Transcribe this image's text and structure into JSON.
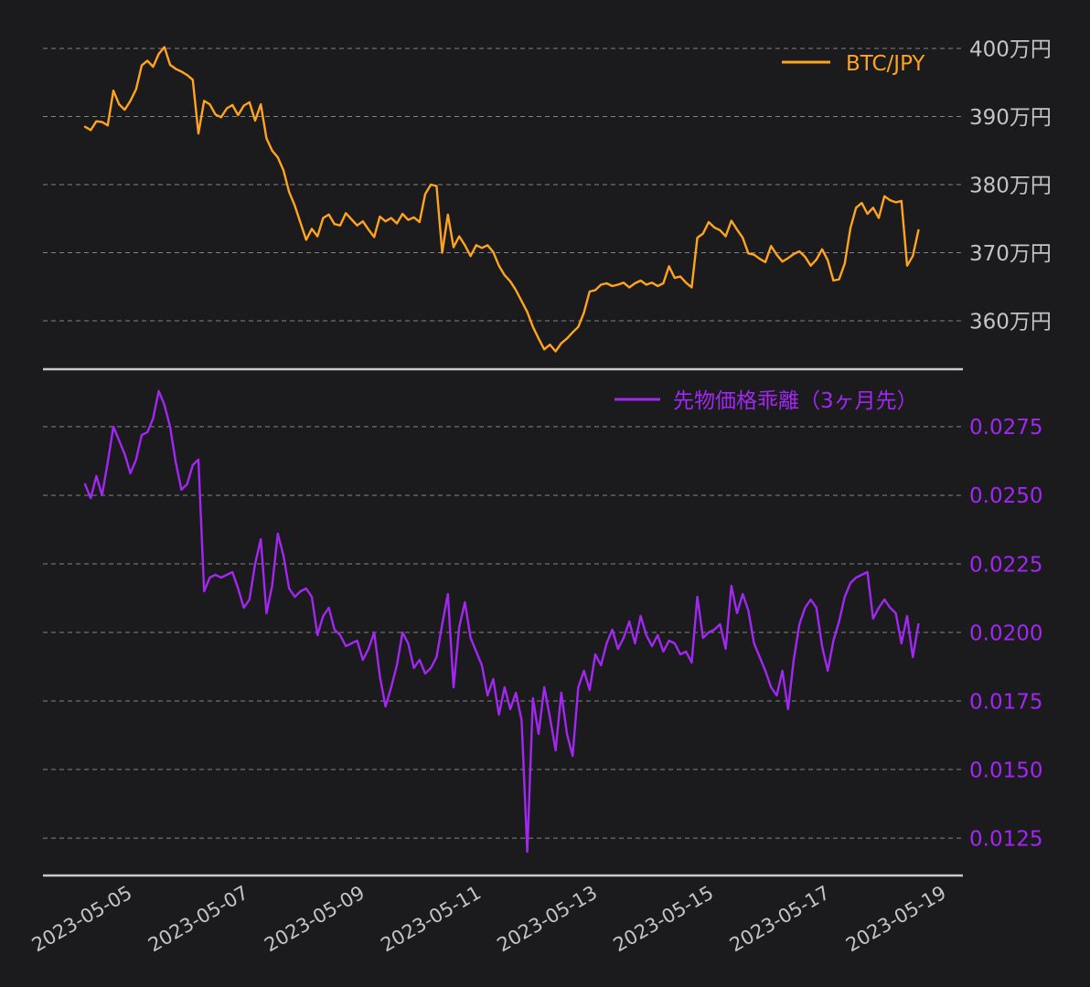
{
  "chart_data": {
    "type": "line",
    "title": "",
    "background_color": "#1b1b1d",
    "grid": true,
    "grid_color": "#96969a",
    "grid_dash": [
      5,
      4
    ],
    "axis_line_color": "#cacacc",
    "x_axis": {
      "tick_labels": [
        "2023-05-05",
        "2023-05-07",
        "2023-05-09",
        "2023-05-11",
        "2023-05-13",
        "2023-05-15",
        "2023-05-17",
        "2023-05-19"
      ],
      "tick_days": [
        5,
        7,
        9,
        11,
        13,
        15,
        17,
        19
      ],
      "xlim_days": [
        3.412,
        19.232
      ],
      "label_rotation_deg": 30,
      "label_color": "#c4c4c6"
    },
    "panels": [
      {
        "id": "btc-jpy",
        "legend_label": "BTC/JPY",
        "line_color": "#ffa41e",
        "tick_label_color": "#c4c4c6",
        "unit": "万円",
        "ylim": [
          353.02,
          403.09
        ],
        "yticks": [
          {
            "value": 400,
            "label": "400万円"
          },
          {
            "value": 390,
            "label": "390万円"
          },
          {
            "value": 380,
            "label": "380万円"
          },
          {
            "value": 370,
            "label": "370万円"
          },
          {
            "value": 360,
            "label": "360万円"
          }
        ],
        "series": {
          "x_start_day": 4.135,
          "x_step_day": 0.0975,
          "values": [
            388.5,
            388.0,
            389.3,
            389.2,
            388.7,
            393.8,
            391.8,
            391.0,
            392.3,
            394.0,
            397.5,
            398.2,
            397.3,
            399.2,
            400.2,
            397.6,
            397.0,
            396.6,
            396.1,
            395.4,
            387.5,
            392.3,
            391.8,
            390.3,
            389.9,
            391.2,
            391.7,
            390.2,
            391.6,
            392.1,
            389.4,
            391.8,
            386.8,
            385.0,
            384.0,
            382.1,
            378.9,
            376.9,
            374.4,
            371.9,
            373.5,
            372.4,
            375.1,
            375.6,
            374.2,
            374.0,
            375.8,
            374.9,
            374.0,
            374.6,
            373.4,
            372.3,
            375.3,
            374.6,
            375.1,
            374.3,
            375.7,
            374.8,
            375.2,
            374.5,
            378.6,
            380.0,
            379.8,
            370.0,
            375.6,
            370.8,
            372.4,
            371.1,
            369.5,
            371.1,
            370.7,
            371.1,
            370.1,
            368.1,
            366.7,
            365.8,
            364.5,
            362.9,
            361.3,
            359.1,
            357.4,
            355.8,
            356.5,
            355.5,
            356.7,
            357.4,
            358.3,
            359.1,
            361.2,
            364.3,
            364.5,
            365.3,
            365.5,
            365.1,
            365.3,
            365.6,
            364.9,
            365.5,
            365.9,
            365.3,
            365.6,
            365.1,
            365.5,
            368.0,
            366.3,
            366.5,
            365.6,
            364.9,
            372.2,
            372.8,
            374.5,
            373.7,
            373.3,
            372.4,
            374.7,
            373.4,
            372.2,
            369.9,
            369.7,
            369.1,
            368.6,
            371.0,
            369.7,
            368.7,
            369.2,
            369.8,
            370.2,
            369.4,
            368.1,
            369.0,
            370.5,
            368.9,
            365.9,
            366.1,
            368.4,
            373.6,
            376.6,
            377.3,
            375.7,
            376.6,
            375.1,
            378.3,
            377.7,
            377.4,
            377.6,
            368.1,
            369.5,
            373.3
          ]
        }
      },
      {
        "id": "futures-deviation",
        "legend_label": "先物価格乖離（3ヶ月先）",
        "line_color": "#a227f2",
        "tick_label_color": "#a227f2",
        "unit": "",
        "ylim": [
          0.01117,
          0.02953
        ],
        "yticks": [
          {
            "value": 0.0275,
            "label": "0.0275"
          },
          {
            "value": 0.025,
            "label": "0.0250"
          },
          {
            "value": 0.0225,
            "label": "0.0225"
          },
          {
            "value": 0.02,
            "label": "0.0200"
          },
          {
            "value": 0.0175,
            "label": "0.0175"
          },
          {
            "value": 0.015,
            "label": "0.0150"
          },
          {
            "value": 0.0125,
            "label": "0.0125"
          }
        ],
        "series": {
          "x_start_day": 4.135,
          "x_step_day": 0.0975,
          "values": [
            0.0254,
            0.0249,
            0.0257,
            0.025,
            0.0262,
            0.0275,
            0.027,
            0.0265,
            0.0258,
            0.0263,
            0.0272,
            0.0273,
            0.0278,
            0.0288,
            0.0283,
            0.0275,
            0.0262,
            0.0252,
            0.0254,
            0.0261,
            0.0263,
            0.0215,
            0.022,
            0.0221,
            0.022,
            0.0221,
            0.0222,
            0.0216,
            0.0209,
            0.0212,
            0.0225,
            0.0234,
            0.0207,
            0.0217,
            0.0236,
            0.0228,
            0.0216,
            0.0213,
            0.0215,
            0.0216,
            0.0213,
            0.0199,
            0.0206,
            0.0209,
            0.0201,
            0.0199,
            0.0195,
            0.0196,
            0.0197,
            0.019,
            0.0194,
            0.02,
            0.0184,
            0.0173,
            0.018,
            0.0188,
            0.02,
            0.0196,
            0.0187,
            0.019,
            0.0185,
            0.0187,
            0.0191,
            0.0203,
            0.0214,
            0.018,
            0.0202,
            0.0211,
            0.0198,
            0.0193,
            0.0188,
            0.0177,
            0.0183,
            0.017,
            0.018,
            0.0172,
            0.0178,
            0.0168,
            0.012,
            0.0176,
            0.0163,
            0.018,
            0.0169,
            0.0157,
            0.0178,
            0.0163,
            0.0155,
            0.018,
            0.0186,
            0.0179,
            0.0192,
            0.0188,
            0.0196,
            0.0201,
            0.0194,
            0.0198,
            0.0204,
            0.0196,
            0.0206,
            0.0199,
            0.0195,
            0.0199,
            0.0193,
            0.0197,
            0.0196,
            0.0192,
            0.0193,
            0.0189,
            0.0213,
            0.0198,
            0.02,
            0.0201,
            0.0203,
            0.0194,
            0.0217,
            0.0207,
            0.0214,
            0.0208,
            0.0196,
            0.0191,
            0.0186,
            0.018,
            0.0177,
            0.0186,
            0.0172,
            0.019,
            0.0203,
            0.0209,
            0.0212,
            0.0209,
            0.0195,
            0.0186,
            0.0197,
            0.0204,
            0.0213,
            0.0218,
            0.022,
            0.0221,
            0.0222,
            0.0205,
            0.0209,
            0.0212,
            0.0209,
            0.0207,
            0.0196,
            0.0206,
            0.0191,
            0.0203
          ]
        }
      }
    ]
  }
}
